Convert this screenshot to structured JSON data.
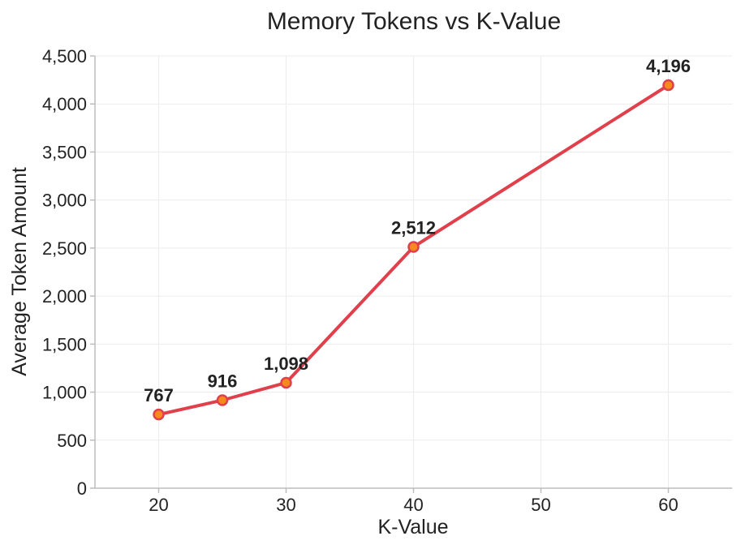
{
  "chart_data": {
    "type": "line",
    "title": "Memory Tokens vs K-Value",
    "xlabel": "K-Value",
    "ylabel": "Average Token Amount",
    "x": [
      20,
      25,
      30,
      40,
      60
    ],
    "series": [
      {
        "values": [
          767,
          916,
          1098,
          2512,
          4196
        ],
        "labels": [
          "767",
          "916",
          "1,098",
          "2,512",
          "4,196"
        ],
        "color": "#e0404b",
        "marker_color": "#f78a1d"
      }
    ],
    "xticks": [
      20,
      30,
      40,
      50,
      60
    ],
    "xtick_labels": [
      "20",
      "30",
      "40",
      "50",
      "60"
    ],
    "yticks": [
      0,
      500,
      1000,
      1500,
      2000,
      2500,
      3000,
      3500,
      4000,
      4500
    ],
    "ytick_labels": [
      "0",
      "500",
      "1,000",
      "1,500",
      "2,000",
      "2,500",
      "3,000",
      "3,500",
      "4,000",
      "4,500"
    ],
    "xlim": [
      15,
      65
    ],
    "ylim": [
      0,
      4500
    ],
    "grid": true
  }
}
